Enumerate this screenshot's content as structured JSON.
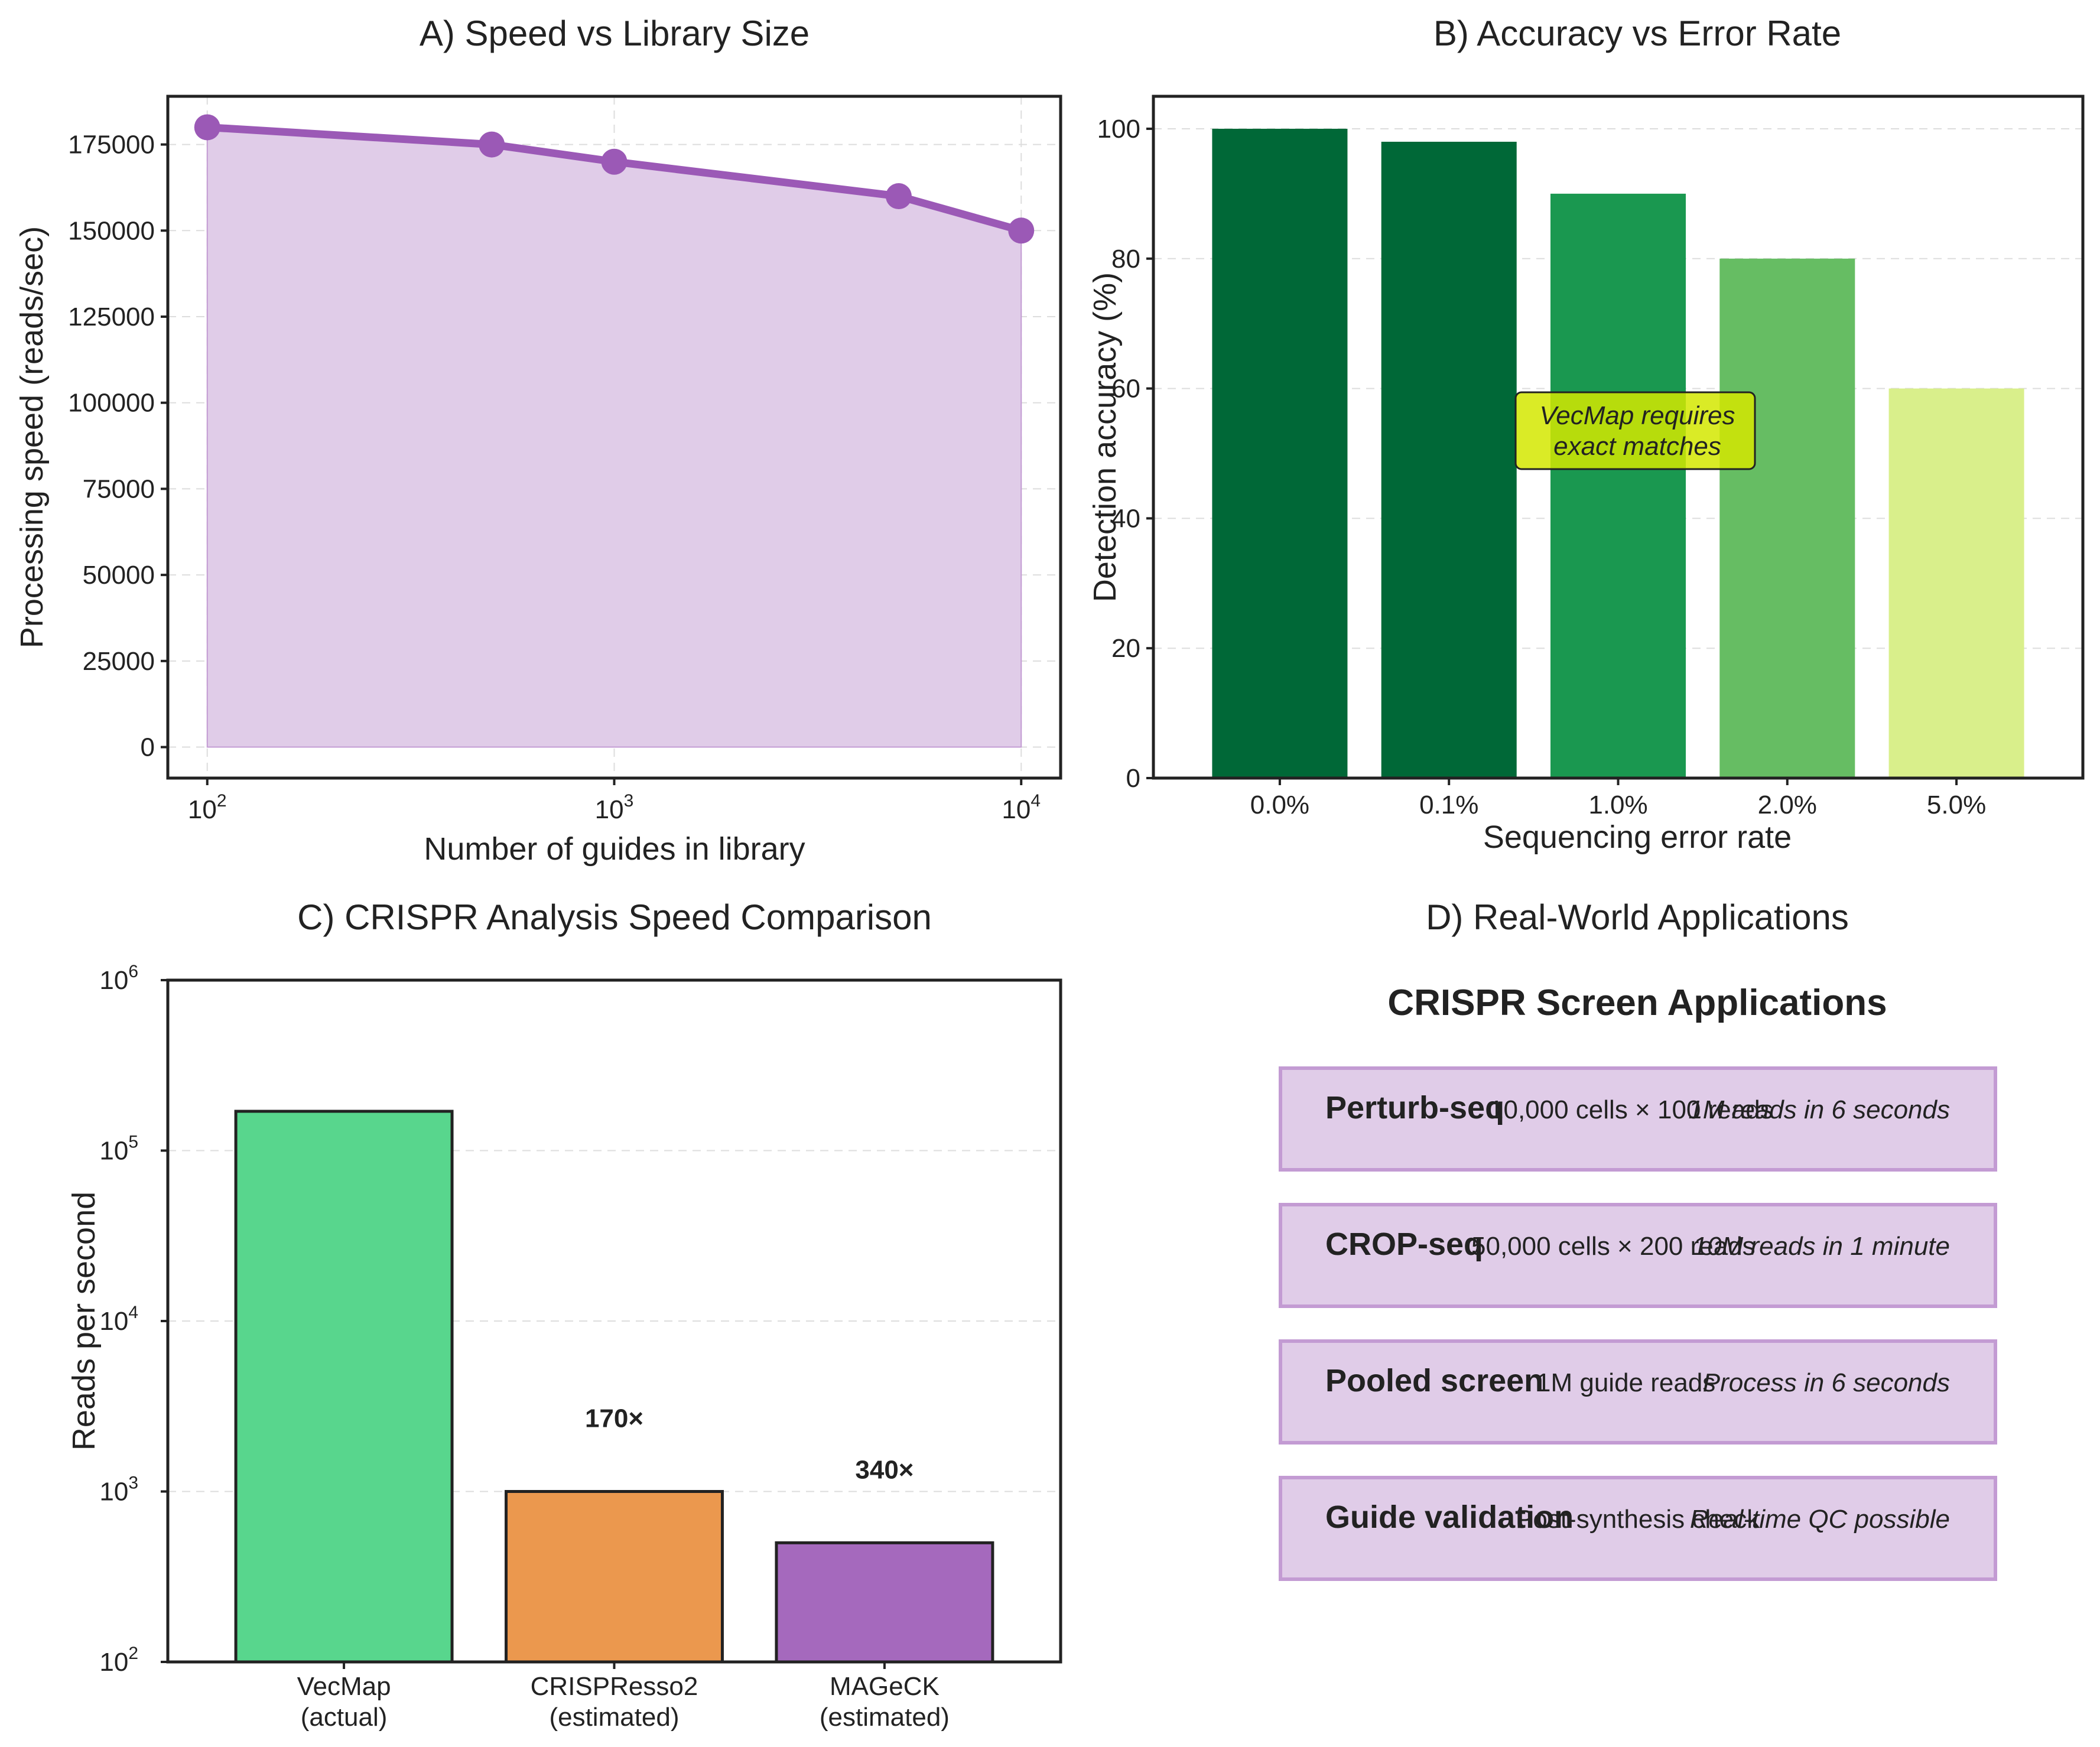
{
  "colors": {
    "speed_line": "#9b59b6",
    "speed_fill": "#e0cce8",
    "accuracy_bars": [
      "#006837",
      "#006837",
      "#1a9850",
      "#66bd63",
      "#d9ef8b"
    ],
    "callout_bg": "#d4e800",
    "comparison_bars": [
      "#58d68d",
      "#eb984e",
      "#a569bd"
    ],
    "app_box_fill": "#e0cce8",
    "app_box_border": "#c39bd3"
  },
  "panel_a": {
    "title": "A) Speed vs Library Size",
    "xlabel": "Number of guides in library",
    "ylabel": "Processing speed (reads/sec)"
  },
  "panel_b": {
    "title": "B) Accuracy vs Error Rate",
    "xlabel": "Sequencing error rate",
    "ylabel": "Detection accuracy (%)",
    "callout_line1": "VecMap requires",
    "callout_line2": "exact matches"
  },
  "panel_c": {
    "title": "C) CRISPR Analysis Speed Comparison",
    "ylabel": "Reads per second"
  },
  "panel_d": {
    "title": "D) Real-World Applications",
    "heading": "CRISPR Screen Applications",
    "apps": [
      {
        "name": "Perturb-seq",
        "detail": "10,000 cells × 100 reads",
        "result": "1M reads in 6 seconds"
      },
      {
        "name": "CROP-seq",
        "detail": "50,000 cells × 200 reads",
        "result": "10M reads in 1 minute"
      },
      {
        "name": "Pooled screen",
        "detail": "1M guide reads",
        "result": "Process in 6 seconds"
      },
      {
        "name": "Guide validation",
        "detail": "Post-synthesis check",
        "result": "Real-time QC possible"
      }
    ]
  },
  "chart_data": [
    {
      "type": "area",
      "title": "A) Speed vs Library Size",
      "xlabel": "Number of guides in library",
      "ylabel": "Processing speed (reads/sec)",
      "xscale": "log",
      "x": [
        100,
        500,
        1000,
        5000,
        10000
      ],
      "y": [
        180000,
        175000,
        170000,
        160000,
        150000
      ],
      "xlim": [
        80,
        12500
      ],
      "ylim": [
        -9000,
        189000
      ],
      "xticks": [
        100,
        1000,
        10000
      ],
      "xtick_base": "10",
      "xtick_exponents": [
        "2",
        "3",
        "4"
      ],
      "yticks": [
        0,
        25000,
        50000,
        75000,
        100000,
        125000,
        150000,
        175000
      ],
      "ytick_labels": [
        "0",
        "25000",
        "50000",
        "75000",
        "100000",
        "125000",
        "150000",
        "175000"
      ],
      "grid": true
    },
    {
      "type": "bar",
      "title": "B) Accuracy vs Error Rate",
      "xlabel": "Sequencing error rate",
      "ylabel": "Detection accuracy (%)",
      "categories": [
        "0.0%",
        "0.1%",
        "1.0%",
        "2.0%",
        "5.0%"
      ],
      "values": [
        100,
        98,
        90,
        80,
        60
      ],
      "ylim": [
        0,
        105
      ],
      "yticks": [
        0,
        20,
        40,
        60,
        80,
        100
      ],
      "ytick_labels": [
        "0",
        "20",
        "40",
        "60",
        "80",
        "100"
      ],
      "annotation": "VecMap requires exact matches",
      "grid": true
    },
    {
      "type": "bar",
      "title": "C) CRISPR Analysis Speed Comparison",
      "xlabel": "",
      "ylabel": "Reads per second",
      "yscale": "log",
      "categories": [
        [
          "VecMap",
          "(actual)"
        ],
        [
          "CRISPResso2",
          "(estimated)"
        ],
        [
          "MAGeCK",
          "(estimated)"
        ]
      ],
      "values": [
        170000,
        1000,
        500
      ],
      "bar_labels": [
        "",
        "170×",
        "340×"
      ],
      "ylim": [
        100,
        1000000
      ],
      "yticks": [
        100,
        1000,
        10000,
        100000,
        1000000
      ],
      "ytick_base": "10",
      "ytick_exponents": [
        "2",
        "3",
        "4",
        "5",
        "6"
      ],
      "grid": true
    }
  ]
}
